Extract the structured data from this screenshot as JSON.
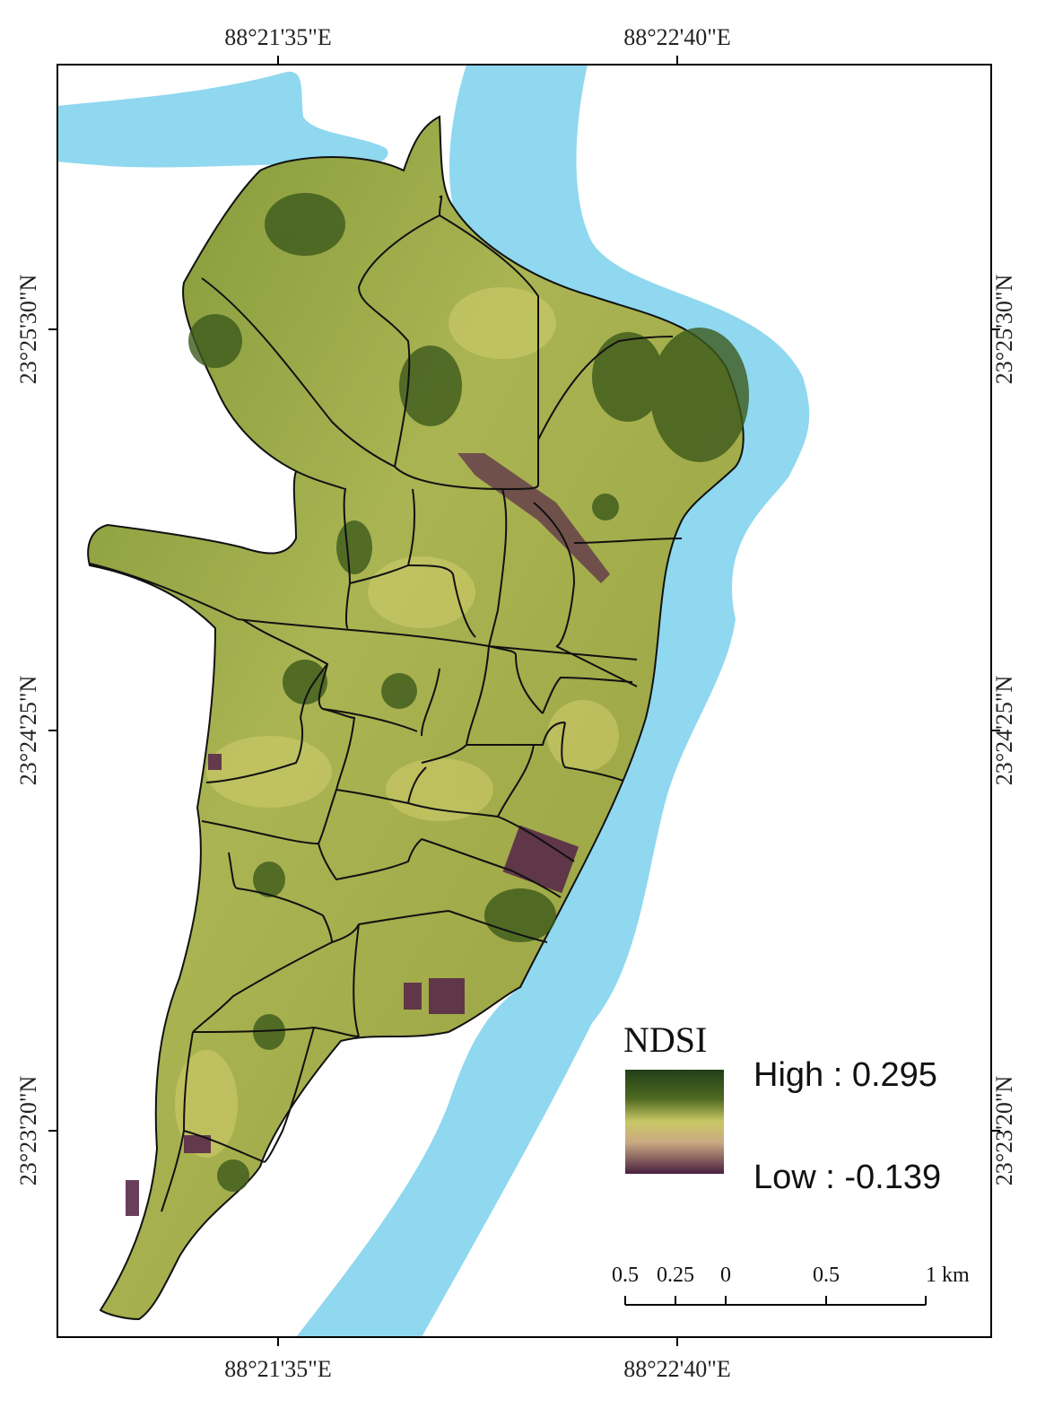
{
  "map": {
    "top_lon_labels": [
      "88°21'35\"E",
      "88°22'40\"E"
    ],
    "bottom_lon_labels": [
      "88°21'35\"E",
      "88°22'40\"E"
    ],
    "left_lat_labels": [
      "23°25'30\"N",
      "23°24'25\"N",
      "23°23'20\"N"
    ],
    "right_lat_labels": [
      "23°25'30\"N",
      "23°24'25\"N",
      "23°23'20\"N"
    ]
  },
  "legend": {
    "title": "NDSI",
    "high_label": "High : 0.295",
    "low_label": "Low : -0.139",
    "high_value": 0.295,
    "low_value": -0.139,
    "ramp_colors": [
      "#213f17",
      "#4f6a21",
      "#c9c765",
      "#c9a982",
      "#4a2040"
    ]
  },
  "scale_bar": {
    "labels": [
      "0.5",
      "0.25",
      "0",
      "0.5",
      "1 km"
    ]
  },
  "colors": {
    "water": "#8fd8ef",
    "land_base": "#a2ab4a",
    "boundary": "#111111",
    "frame": "#000000"
  }
}
